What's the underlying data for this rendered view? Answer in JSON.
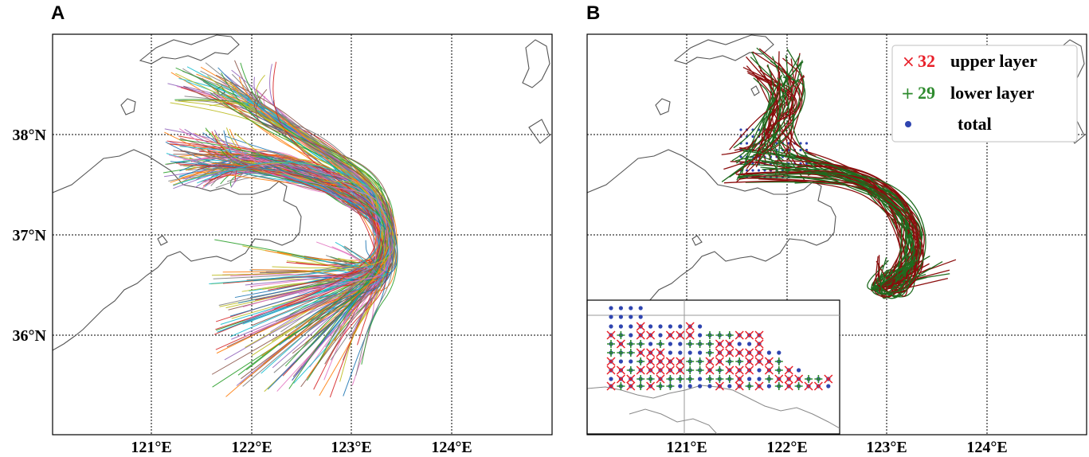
{
  "panels": [
    {
      "letter": "A",
      "x_ticks": [
        "121°E",
        "122°E",
        "123°E",
        "124°E"
      ],
      "y_ticks": [
        "38°N",
        "37°N",
        "36°N"
      ]
    },
    {
      "letter": "B",
      "x_ticks": [
        "121°E",
        "122°E",
        "123°E",
        "124°E"
      ],
      "legend": [
        {
          "marker": "×",
          "count": "32",
          "label": "upper layer",
          "color": "#e8202a"
        },
        {
          "marker": "+",
          "count": "29",
          "label": "lower layer",
          "color": "#2e8b2e"
        },
        {
          "marker": "●",
          "count": "",
          "label": "total",
          "color": "#2f45b0"
        }
      ]
    }
  ],
  "colors": {
    "upper_layer": "#8b0d0d",
    "lower_layer": "#1f6b1f",
    "coast": "#555555",
    "grid": "#000000",
    "total_dot": "#2f45b0"
  }
}
